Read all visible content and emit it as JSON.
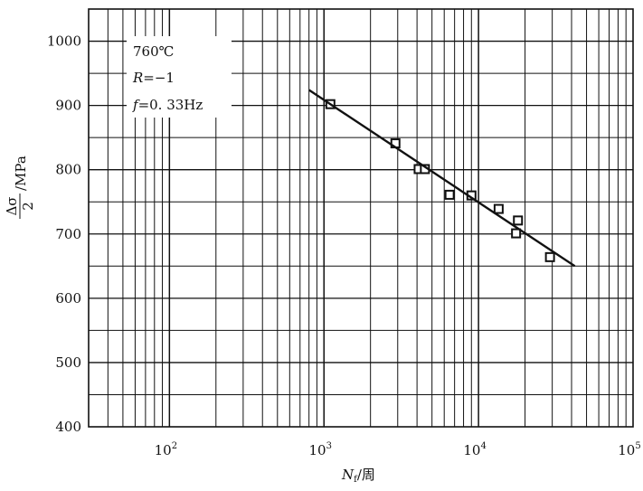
{
  "chart_data": {
    "type": "scatter",
    "xscale": "log",
    "xlim": [
      30,
      100000
    ],
    "ylim": [
      400,
      1050
    ],
    "grid": true,
    "x_tick_labels": [
      {
        "base": "10",
        "exp": "2",
        "value": 100
      },
      {
        "base": "10",
        "exp": "3",
        "value": 1000
      },
      {
        "base": "10",
        "exp": "4",
        "value": 10000
      },
      {
        "base": "10",
        "exp": "5",
        "value": 100000
      }
    ],
    "y_ticks": [
      400,
      500,
      600,
      700,
      800,
      900,
      1000
    ],
    "y_tick_labels": [
      "400",
      "500",
      "600",
      "700",
      "800",
      "900",
      "1000"
    ],
    "xlabel": {
      "symbol": "N",
      "sub": "f",
      "unit": "/周"
    },
    "ylabel": {
      "num": "Δσ",
      "den": "2",
      "unit": "/MPa"
    },
    "annotations": [
      {
        "text": "760℃"
      },
      {
        "italic": "R",
        "text": "=−1"
      },
      {
        "italic": "f",
        "text": "=0. 33Hz"
      }
    ],
    "series": [
      {
        "marker": "square",
        "points": [
          {
            "x": 1100,
            "y": 902
          },
          {
            "x": 2900,
            "y": 841
          },
          {
            "x": 4100,
            "y": 801
          },
          {
            "x": 4500,
            "y": 801
          },
          {
            "x": 6500,
            "y": 761
          },
          {
            "x": 9000,
            "y": 760
          },
          {
            "x": 13500,
            "y": 739
          },
          {
            "x": 17500,
            "y": 701
          },
          {
            "x": 18000,
            "y": 721
          },
          {
            "x": 29000,
            "y": 664
          }
        ]
      },
      {
        "style": "line",
        "points": [
          {
            "x": 800,
            "y": 924
          },
          {
            "x": 42000,
            "y": 650
          }
        ]
      }
    ]
  }
}
